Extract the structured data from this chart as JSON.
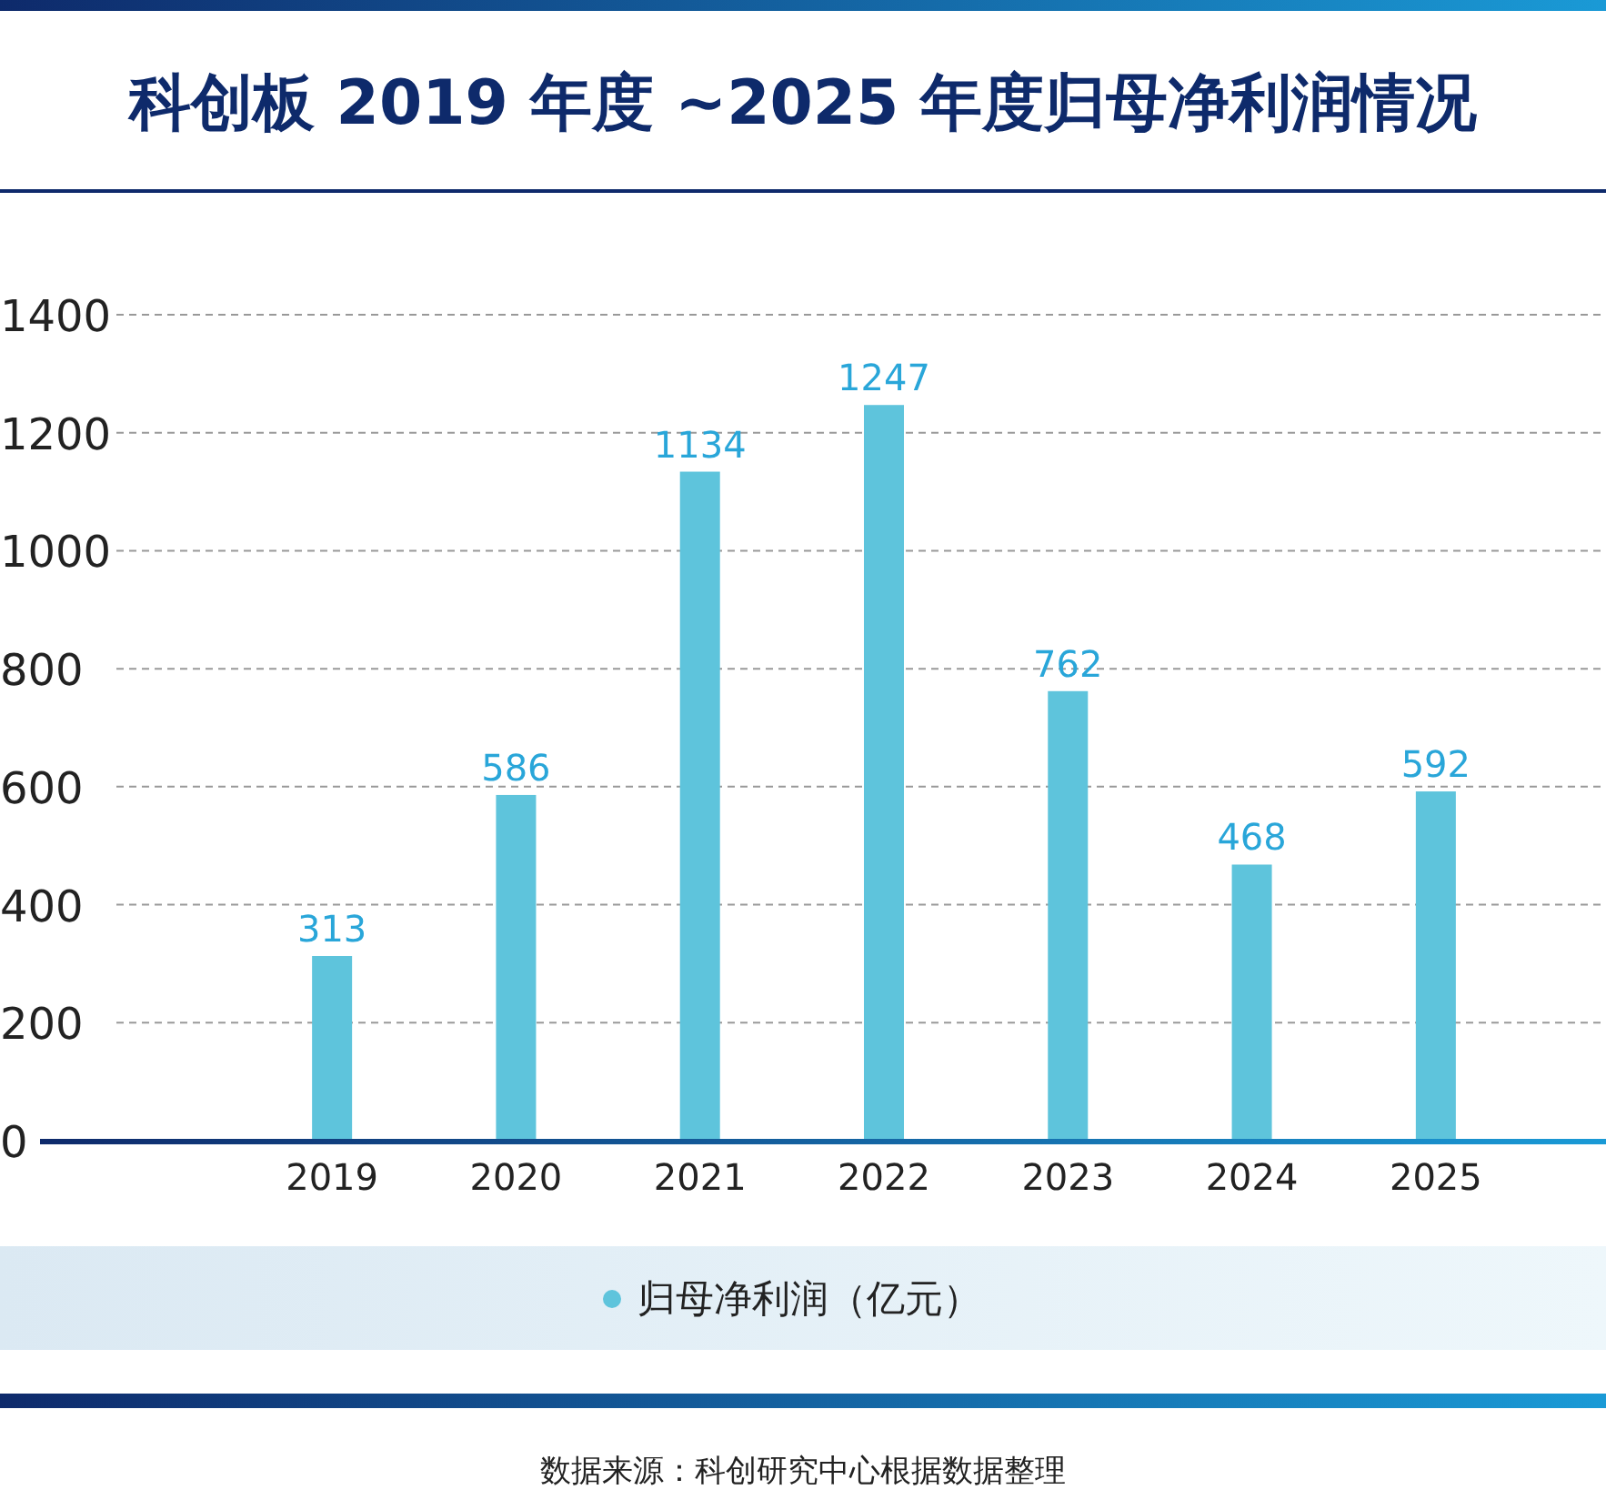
{
  "chart_data": {
    "type": "bar",
    "title": "科创板 2019 年度 ~2025 年度归母净利润情况",
    "categories": [
      "2019",
      "2020",
      "2021",
      "2022",
      "2023",
      "2024",
      "2025"
    ],
    "series": [
      {
        "name": "归母净利润（亿元）",
        "color": "#5ec4dc",
        "values": [
          313,
          586,
          1134,
          1247,
          762,
          468,
          592
        ]
      }
    ],
    "ylim": [
      0,
      1400
    ],
    "yticks": [
      0,
      200,
      400,
      600,
      800,
      1000,
      1200,
      1400
    ],
    "grid": "y",
    "legend": "bottom",
    "data_labels": true,
    "annotations": [
      "数据来源：科创研究中心根据数据整理"
    ]
  }
}
